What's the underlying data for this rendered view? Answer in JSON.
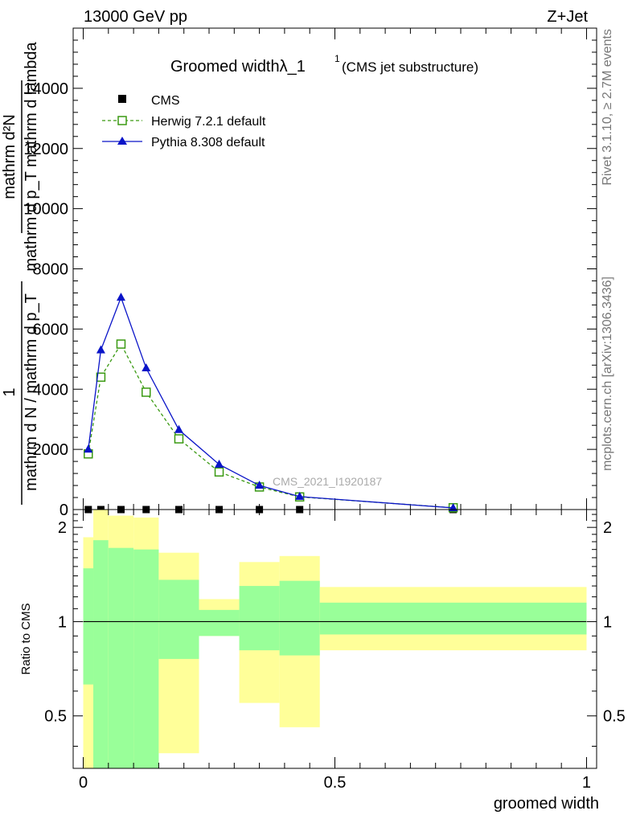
{
  "header": {
    "energy_label": "13000 GeV pp",
    "process_label": "Z+Jet",
    "rivet_label": "Rivet 3.1.10, ≥ 2.7M events",
    "mcplots_label": "mcplots.cern.ch [arXiv:1306.3436]"
  },
  "chart_data": [
    {
      "type": "line",
      "title_main": "Groomed widthλ_1",
      "title_sup": "1",
      "title_sub": "(CMS jet substructure)",
      "ylabel_numerator": "mathrm d²N",
      "ylabel_denominator": "mathrm d p_T mathrm d lambda",
      "ylabel_top": "1",
      "ylabel_frac_bottom": "mathrm d N / mathrm d p_T",
      "analysis_label": "CMS_2021_I1920187",
      "xlim": [
        -0.02,
        1.02
      ],
      "ylim": [
        0,
        16000
      ],
      "yticks": [
        0,
        2000,
        4000,
        6000,
        8000,
        10000,
        12000,
        14000
      ],
      "ytick_labels": [
        "0",
        "2000",
        "4000",
        "6000",
        "8000",
        "10000",
        "12000",
        "14000"
      ],
      "legend_position": "top-left",
      "series": [
        {
          "name": "CMS",
          "color": "#000000",
          "marker": "square-filled",
          "x": [
            0.01,
            0.035,
            0.075,
            0.125,
            0.19,
            0.27,
            0.35,
            0.43,
            0.735
          ],
          "values": [
            0,
            0,
            0,
            0,
            0,
            0,
            0,
            0,
            0
          ]
        },
        {
          "name": "Herwig 7.2.1 default",
          "color": "#3a9a12",
          "marker": "square-open",
          "dashed": true,
          "x": [
            0.01,
            0.035,
            0.075,
            0.125,
            0.19,
            0.27,
            0.35,
            0.43,
            0.735
          ],
          "values": [
            1850,
            4400,
            5500,
            3900,
            2350,
            1250,
            750,
            420,
            60
          ]
        },
        {
          "name": "Pythia 8.308 default",
          "color": "#0a14c8",
          "marker": "triangle-filled",
          "dashed": false,
          "x": [
            0.01,
            0.035,
            0.075,
            0.125,
            0.19,
            0.27,
            0.35,
            0.43,
            0.735
          ],
          "values": [
            2000,
            5300,
            7050,
            4700,
            2650,
            1500,
            800,
            430,
            55
          ]
        }
      ]
    },
    {
      "type": "area",
      "ylabel": "Ratio to CMS",
      "xlabel": "groomed width",
      "xlim": [
        -0.02,
        1.02
      ],
      "ylim": [
        0.34,
        2.28
      ],
      "yticks": [
        0.5,
        1,
        2
      ],
      "ytick_labels": [
        "0.5",
        "1",
        "2"
      ],
      "xticks": [
        0,
        0.5,
        1
      ],
      "xtick_labels": [
        "0",
        "0.5",
        "1"
      ],
      "reference_line": 1,
      "bands": [
        {
          "x0": 0.0,
          "x1": 0.02,
          "stat_lo": 0.63,
          "stat_hi": 1.48,
          "tot_lo": 0.34,
          "tot_hi": 1.86
        },
        {
          "x0": 0.02,
          "x1": 0.05,
          "stat_lo": 0.34,
          "stat_hi": 1.82,
          "tot_lo": 0.34,
          "tot_hi": 2.28
        },
        {
          "x0": 0.05,
          "x1": 0.1,
          "stat_lo": 0.34,
          "stat_hi": 1.72,
          "tot_lo": 0.34,
          "tot_hi": 2.18
        },
        {
          "x0": 0.1,
          "x1": 0.15,
          "stat_lo": 0.34,
          "stat_hi": 1.7,
          "tot_lo": 0.34,
          "tot_hi": 2.15
        },
        {
          "x0": 0.15,
          "x1": 0.23,
          "stat_lo": 0.76,
          "stat_hi": 1.36,
          "tot_lo": 0.38,
          "tot_hi": 1.66
        },
        {
          "x0": 0.23,
          "x1": 0.31,
          "stat_lo": 0.9,
          "stat_hi": 1.09,
          "tot_lo": 0.9,
          "tot_hi": 1.18
        },
        {
          "x0": 0.31,
          "x1": 0.39,
          "stat_lo": 0.81,
          "stat_hi": 1.3,
          "tot_lo": 0.55,
          "tot_hi": 1.55
        },
        {
          "x0": 0.39,
          "x1": 0.47,
          "stat_lo": 0.78,
          "stat_hi": 1.35,
          "tot_lo": 0.46,
          "tot_hi": 1.62
        },
        {
          "x0": 0.47,
          "x1": 1.0,
          "stat_lo": 0.91,
          "stat_hi": 1.15,
          "tot_lo": 0.81,
          "tot_hi": 1.29
        }
      ],
      "stat_color": "#99ff99",
      "total_color": "#ffff99"
    }
  ]
}
